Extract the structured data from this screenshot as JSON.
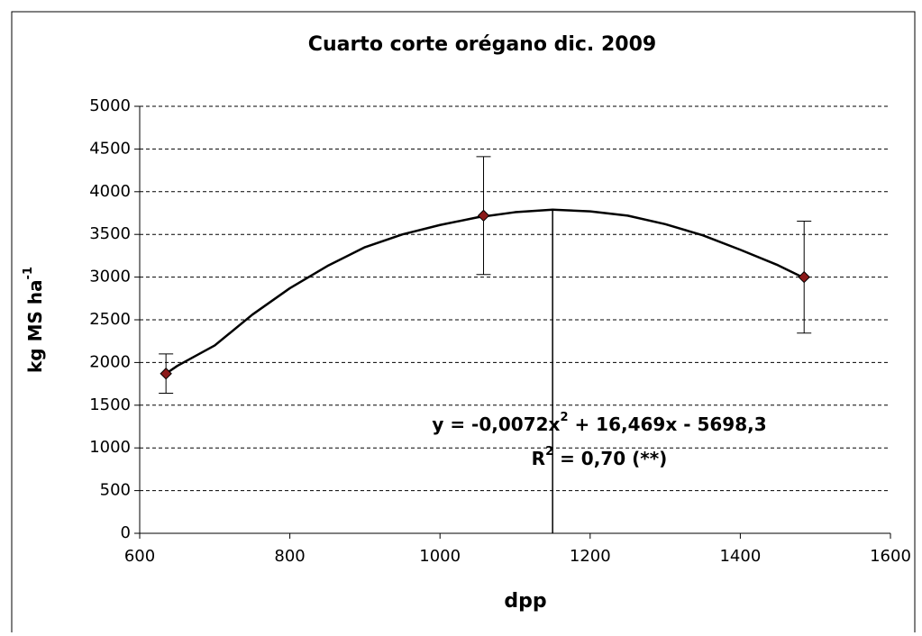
{
  "chart_data": {
    "type": "scatter",
    "title": "Cuarto corte orégano dic. 2009",
    "x_label": "dpp",
    "y_label": [
      "kg MS ha",
      "-1"
    ],
    "series": [
      {
        "x": [
          635,
          1058,
          1485
        ],
        "values": [
          1870,
          3720,
          3000
        ],
        "errors": [
          230,
          690,
          655
        ],
        "color": "#8b1a1a"
      }
    ],
    "trendline": {
      "x": [
        635,
        650,
        700,
        750,
        800,
        850,
        900,
        950,
        1000,
        1050,
        1100,
        1150,
        1200,
        1250,
        1300,
        1350,
        1400,
        1450,
        1485
      ],
      "values": [
        1870,
        1960,
        2200,
        2560,
        2870,
        3130,
        3350,
        3500,
        3610,
        3700,
        3760,
        3790,
        3770,
        3720,
        3620,
        3490,
        3320,
        3140,
        2990
      ]
    },
    "vline": {
      "x": 1150,
      "top": 3790
    },
    "equation": [
      "y = -0,0072x",
      "2",
      " + 16,469x - 5698,3"
    ],
    "r_squared": [
      "R",
      "2",
      " = 0,70 (**)"
    ],
    "xlim": [
      600,
      1600
    ],
    "xticks": [
      600,
      800,
      1000,
      1200,
      1400,
      1600
    ],
    "ylim": [
      0,
      5000
    ],
    "yticks": [
      0,
      500,
      1000,
      1500,
      2000,
      2500,
      3000,
      3500,
      4000,
      4500,
      5000
    ],
    "grid": true
  }
}
